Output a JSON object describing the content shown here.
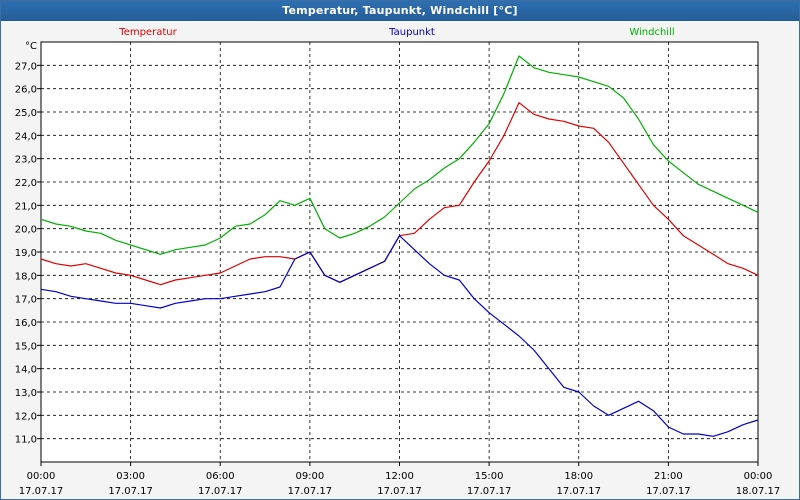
{
  "window": {
    "title": "Temperatur, Taupunkt, Windchill [°C]"
  },
  "chart_data": {
    "type": "line",
    "title": "Temperatur, Taupunkt, Windchill [°C]",
    "ylabel": "°C",
    "xlabel": "",
    "ylim": [
      10.0,
      28.0
    ],
    "xlim": [
      0,
      24
    ],
    "grid": true,
    "legend_placement": "top",
    "y_ticks": [
      "11,0",
      "12,0",
      "13,0",
      "14,0",
      "15,0",
      "16,0",
      "17,0",
      "18,0",
      "19,0",
      "20,0",
      "21,0",
      "22,0",
      "23,0",
      "24,0",
      "25,0",
      "26,0",
      "27,0"
    ],
    "x_ticks": [
      {
        "time": "00:00",
        "date": "17.07.17"
      },
      {
        "time": "03:00",
        "date": "17.07.17"
      },
      {
        "time": "06:00",
        "date": "17.07.17"
      },
      {
        "time": "09:00",
        "date": "17.07.17"
      },
      {
        "time": "12:00",
        "date": "17.07.17"
      },
      {
        "time": "15:00",
        "date": "17.07.17"
      },
      {
        "time": "18:00",
        "date": "17.07.17"
      },
      {
        "time": "21:00",
        "date": "17.07.17"
      },
      {
        "time": "00:00",
        "date": "18.07.17"
      }
    ],
    "x": [
      0,
      0.5,
      1,
      1.5,
      2,
      2.5,
      3,
      3.5,
      4,
      4.5,
      5,
      5.5,
      6,
      6.5,
      7,
      7.5,
      8,
      8.5,
      9,
      9.5,
      10,
      10.5,
      11,
      11.5,
      12,
      12.5,
      13,
      13.5,
      14,
      14.5,
      15,
      15.5,
      16,
      16.5,
      17,
      17.5,
      18,
      18.5,
      19,
      19.5,
      20,
      20.5,
      21,
      21.5,
      22,
      22.5,
      23,
      23.5,
      24
    ],
    "series": [
      {
        "name": "Temperatur",
        "color": "#e00000",
        "values": [
          18.7,
          18.5,
          18.4,
          18.5,
          18.3,
          18.1,
          18.0,
          17.8,
          17.6,
          17.8,
          17.9,
          18.0,
          18.1,
          18.4,
          18.7,
          18.8,
          18.8,
          18.7,
          19.0,
          18.0,
          17.7,
          18.0,
          18.3,
          18.6,
          19.7,
          19.8,
          20.4,
          20.9,
          21.0,
          22.0,
          22.9,
          24.0,
          25.4,
          24.9,
          24.7,
          24.6,
          24.4,
          24.3,
          23.7,
          22.8,
          21.9,
          21.0,
          20.4,
          19.7,
          19.3,
          18.9,
          18.5,
          18.3,
          18.0
        ]
      },
      {
        "name": "Taupunkt",
        "color": "#0000c8",
        "values": [
          17.4,
          17.3,
          17.1,
          17.0,
          16.9,
          16.8,
          16.8,
          16.7,
          16.6,
          16.8,
          16.9,
          17.0,
          17.0,
          17.1,
          17.2,
          17.3,
          17.5,
          18.7,
          19.0,
          18.0,
          17.7,
          18.0,
          18.3,
          18.6,
          19.7,
          19.1,
          18.5,
          18.0,
          17.8,
          17.0,
          16.4,
          15.9,
          15.4,
          14.8,
          14.0,
          13.2,
          13.0,
          12.4,
          12.0,
          12.3,
          12.6,
          12.2,
          11.5,
          11.2,
          11.2,
          11.1,
          11.3,
          11.6,
          11.8
        ]
      },
      {
        "name": "Windchill",
        "color": "#00b000",
        "values": [
          20.4,
          20.2,
          20.1,
          19.9,
          19.8,
          19.5,
          19.3,
          19.1,
          18.9,
          19.1,
          19.2,
          19.3,
          19.6,
          20.1,
          20.2,
          20.6,
          21.2,
          21.0,
          21.3,
          20.0,
          19.6,
          19.8,
          20.1,
          20.5,
          21.1,
          21.7,
          22.1,
          22.6,
          23.0,
          23.7,
          24.5,
          25.8,
          27.4,
          26.9,
          26.7,
          26.6,
          26.5,
          26.3,
          26.1,
          25.6,
          24.7,
          23.6,
          22.9,
          22.4,
          21.9,
          21.6,
          21.3,
          21.0,
          20.7
        ]
      }
    ]
  }
}
